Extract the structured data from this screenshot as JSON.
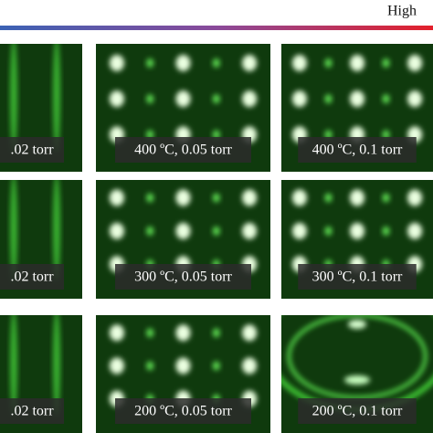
{
  "header": {
    "label": "High"
  },
  "rows": [
    [
      {
        "caption": ".02 torr"
      },
      {
        "caption": "400 ºC, 0.05 torr"
      },
      {
        "caption": "400 ºC, 0.1 torr"
      }
    ],
    [
      {
        "caption": ".02 torr"
      },
      {
        "caption": "300 ºC, 0.05 torr"
      },
      {
        "caption": "300 ºC, 0.1 torr"
      }
    ],
    [
      {
        "caption": ".02 torr"
      },
      {
        "caption": "200 ºC, 0.05 torr"
      },
      {
        "caption": "200 ºC, 0.1 torr"
      }
    ]
  ]
}
